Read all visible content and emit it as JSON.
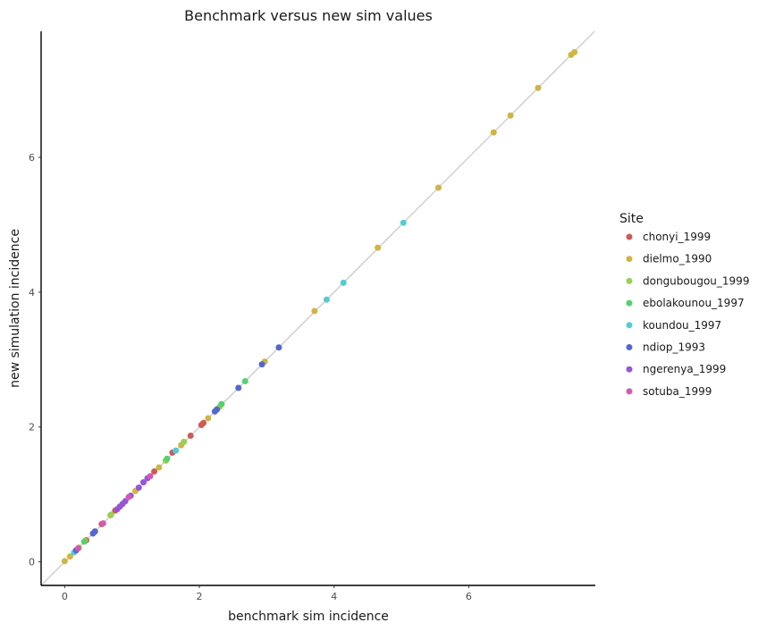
{
  "chart_data": {
    "type": "scatter",
    "title": "Benchmark versus new sim values",
    "xlabel": "benchmark sim incidence",
    "ylabel": "new simulation incidence",
    "xlim": [
      -0.35,
      7.88
    ],
    "ylim": [
      -0.35,
      7.87
    ],
    "xticks": [
      "0",
      "2",
      "4",
      "6"
    ],
    "yticks": [
      "0",
      "2",
      "4",
      "6"
    ],
    "grid": false,
    "reference_line": "y = x",
    "legend": {
      "title": "Site",
      "position": "right"
    },
    "series": [
      {
        "name": "chonyi_1999",
        "color": "#cd5b55",
        "points": [
          [
            0.32,
            0.32
          ],
          [
            0.55,
            0.56
          ],
          [
            0.75,
            0.76
          ],
          [
            1.33,
            1.34
          ],
          [
            1.6,
            1.62
          ],
          [
            1.87,
            1.87
          ],
          [
            2.03,
            2.03
          ],
          [
            2.06,
            2.06
          ]
        ]
      },
      {
        "name": "dielmo_1990",
        "color": "#cfb542",
        "points": [
          [
            0.0,
            0.01
          ],
          [
            0.08,
            0.08
          ],
          [
            0.21,
            0.21
          ],
          [
            0.68,
            0.69
          ],
          [
            1.05,
            1.05
          ],
          [
            1.4,
            1.4
          ],
          [
            1.73,
            1.73
          ],
          [
            2.13,
            2.13
          ],
          [
            2.97,
            2.97
          ],
          [
            3.71,
            3.72
          ],
          [
            4.65,
            4.66
          ],
          [
            5.55,
            5.55
          ],
          [
            6.37,
            6.37
          ],
          [
            6.62,
            6.62
          ],
          [
            7.03,
            7.03
          ],
          [
            7.52,
            7.52
          ],
          [
            7.57,
            7.56
          ]
        ]
      },
      {
        "name": "dongubougou_1999",
        "color": "#98d053",
        "points": [
          [
            0.3,
            0.31
          ],
          [
            0.69,
            0.7
          ],
          [
            1.5,
            1.5
          ],
          [
            1.77,
            1.78
          ],
          [
            2.3,
            2.3
          ]
        ]
      },
      {
        "name": "ebolakounou_1997",
        "color": "#55d071",
        "points": [
          [
            0.29,
            0.3
          ],
          [
            1.52,
            1.53
          ],
          [
            2.33,
            2.34
          ],
          [
            2.68,
            2.68
          ]
        ]
      },
      {
        "name": "koundou_1997",
        "color": "#53ccd1",
        "points": [
          [
            0.14,
            0.14
          ],
          [
            1.65,
            1.65
          ],
          [
            3.89,
            3.89
          ],
          [
            4.14,
            4.14
          ],
          [
            5.03,
            5.03
          ]
        ]
      },
      {
        "name": "ndiop_1993",
        "color": "#5467d0",
        "points": [
          [
            0.17,
            0.17
          ],
          [
            0.42,
            0.42
          ],
          [
            0.45,
            0.45
          ],
          [
            2.23,
            2.23
          ],
          [
            2.26,
            2.26
          ],
          [
            2.58,
            2.58
          ],
          [
            2.93,
            2.93
          ],
          [
            3.18,
            3.18
          ]
        ]
      },
      {
        "name": "ngerenya_1999",
        "color": "#9656d5",
        "points": [
          [
            0.78,
            0.78
          ],
          [
            0.82,
            0.82
          ],
          [
            0.86,
            0.86
          ],
          [
            0.9,
            0.9
          ],
          [
            0.98,
            0.98
          ],
          [
            1.1,
            1.1
          ],
          [
            1.17,
            1.18
          ],
          [
            1.23,
            1.24
          ]
        ]
      },
      {
        "name": "sotuba_1999",
        "color": "#d15ab6",
        "points": [
          [
            0.2,
            0.2
          ],
          [
            0.57,
            0.57
          ],
          [
            0.95,
            0.96
          ],
          [
            1.27,
            1.27
          ]
        ]
      }
    ]
  }
}
